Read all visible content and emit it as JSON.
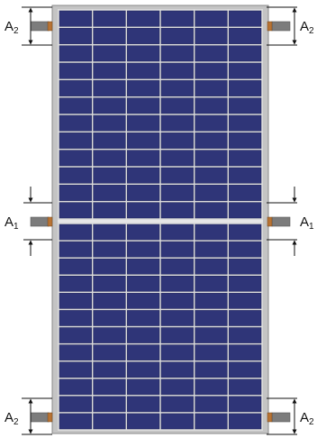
{
  "diagram": {
    "panel": {
      "columns": 6,
      "rows_per_half": 12,
      "colors": {
        "frame": "#c4c4c4",
        "frame_edge": "#8a8a8a",
        "cell": "#2f3578",
        "cell_edge": "#1d2259",
        "grid_line": "#dcdcdc"
      }
    },
    "labels": {
      "a2": {
        "letter": "A",
        "sub": "2"
      },
      "a1": {
        "letter": "A",
        "sub": "1"
      }
    },
    "clamp_colors": {
      "body": "#7c7c7c",
      "tab": "#b87333"
    },
    "clamp_zones": [
      {
        "name": "top-left",
        "label": "a2"
      },
      {
        "name": "top-right",
        "label": "a2"
      },
      {
        "name": "mid-left",
        "label": "a1"
      },
      {
        "name": "mid-right",
        "label": "a1"
      },
      {
        "name": "bottom-left",
        "label": "a2"
      },
      {
        "name": "bottom-right",
        "label": "a2"
      }
    ]
  }
}
